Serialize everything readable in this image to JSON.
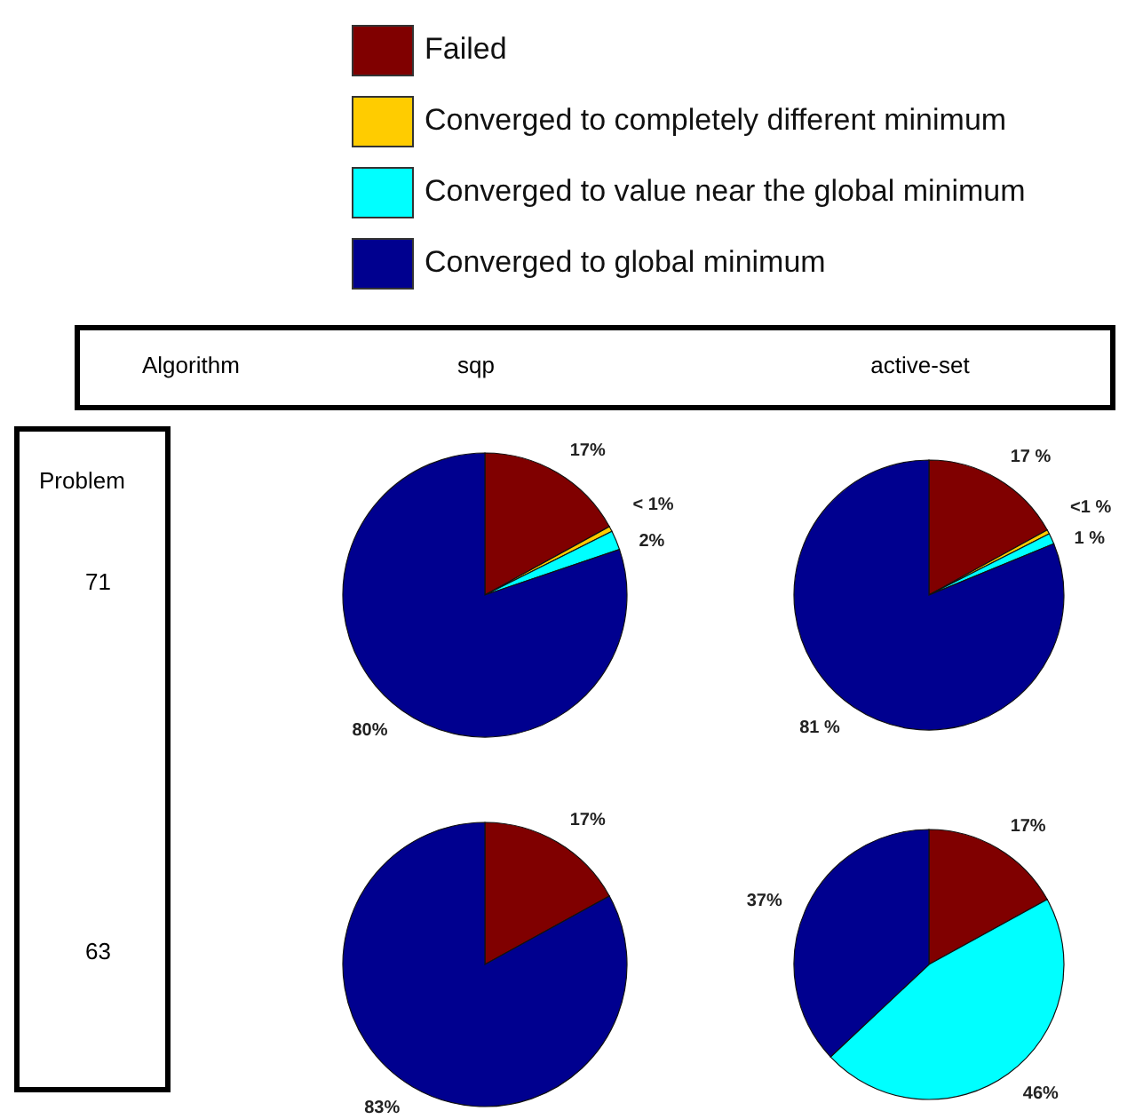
{
  "chart_data": [
    {
      "type": "pie",
      "title": "sqp",
      "ylabel": "71",
      "annotations": [
        "Algorithm",
        "Problem"
      ],
      "legend": "top",
      "categories": [
        "Failed",
        "Converged to completely different minimum",
        "Converged to value near the global minimum",
        "Converged to global minimum"
      ],
      "values": [
        17.0,
        0.6,
        2.2,
        80.2
      ],
      "colors": [
        "#800000",
        "#ffcc00",
        "#00ffff",
        "#00008f"
      ],
      "value_labels": [
        "17%",
        "< 1%",
        "2%",
        "80%"
      ]
    },
    {
      "type": "pie",
      "title": "active-set",
      "values": [
        17.0,
        0.5,
        1.3,
        81.2
      ],
      "colors": [
        "#800000",
        "#ffcc00",
        "#00ffff",
        "#00008f"
      ],
      "value_labels": [
        "17 %",
        "<1 %",
        "1 %",
        "81 %"
      ]
    },
    {
      "type": "pie",
      "ylabel": "63",
      "values": [
        17,
        0,
        0,
        83
      ],
      "colors": [
        "#800000",
        "#ffcc00",
        "#00ffff",
        "#00008f"
      ],
      "value_labels": [
        "17%",
        null,
        null,
        "83%"
      ]
    },
    {
      "type": "pie",
      "values": [
        17,
        0,
        46,
        37
      ],
      "colors": [
        "#800000",
        "#ffcc00",
        "#00ffff",
        "#00008f"
      ],
      "value_labels": [
        "17%",
        null,
        "46%",
        "37%"
      ]
    }
  ]
}
